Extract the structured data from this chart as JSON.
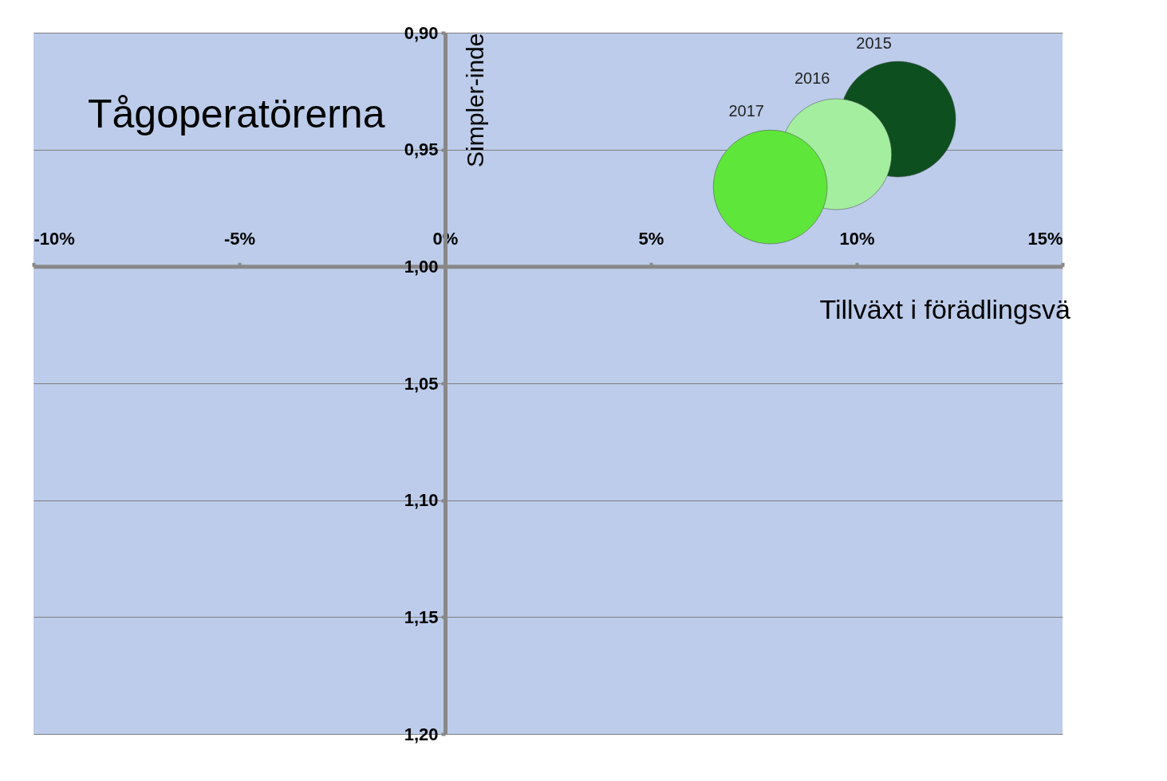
{
  "chart_data": {
    "type": "bubble",
    "title": "Tågoperatörerna",
    "xlabel": "Tillväxt i förädlingsvä",
    "ylabel": "Simpler-inde",
    "series": [
      {
        "name": "2015",
        "color": "#0d4f1f",
        "x": [
          11.0
        ],
        "values": [
          0.937
        ],
        "sizes": [
          1
        ]
      },
      {
        "name": "2016",
        "color": "#a4eea0",
        "x": [
          9.5
        ],
        "values": [
          0.952
        ],
        "sizes": [
          0.92
        ]
      },
      {
        "name": "2017",
        "color": "#5fe63a",
        "x": [
          7.9
        ],
        "values": [
          0.966
        ],
        "sizes": [
          0.97
        ]
      }
    ],
    "xlim": [
      -10,
      15
    ],
    "ylim": [
      1.2,
      0.9
    ],
    "xticks": [
      {
        "value": -10,
        "label": "-10%"
      },
      {
        "value": -5,
        "label": "-5%"
      },
      {
        "value": 0,
        "label": "0%"
      },
      {
        "value": 5,
        "label": "5%"
      },
      {
        "value": 10,
        "label": "10%"
      },
      {
        "value": 15,
        "label": "15%"
      }
    ],
    "yticks": [
      {
        "value": 0.9,
        "label": "0,90"
      },
      {
        "value": 0.95,
        "label": "0,95"
      },
      {
        "value": 1.0,
        "label": "1,00"
      },
      {
        "value": 1.05,
        "label": "1,05"
      },
      {
        "value": 1.1,
        "label": "1,10"
      },
      {
        "value": 1.15,
        "label": "1,15"
      },
      {
        "value": 1.2,
        "label": "1,20"
      }
    ],
    "grid": "y",
    "legend": false
  }
}
